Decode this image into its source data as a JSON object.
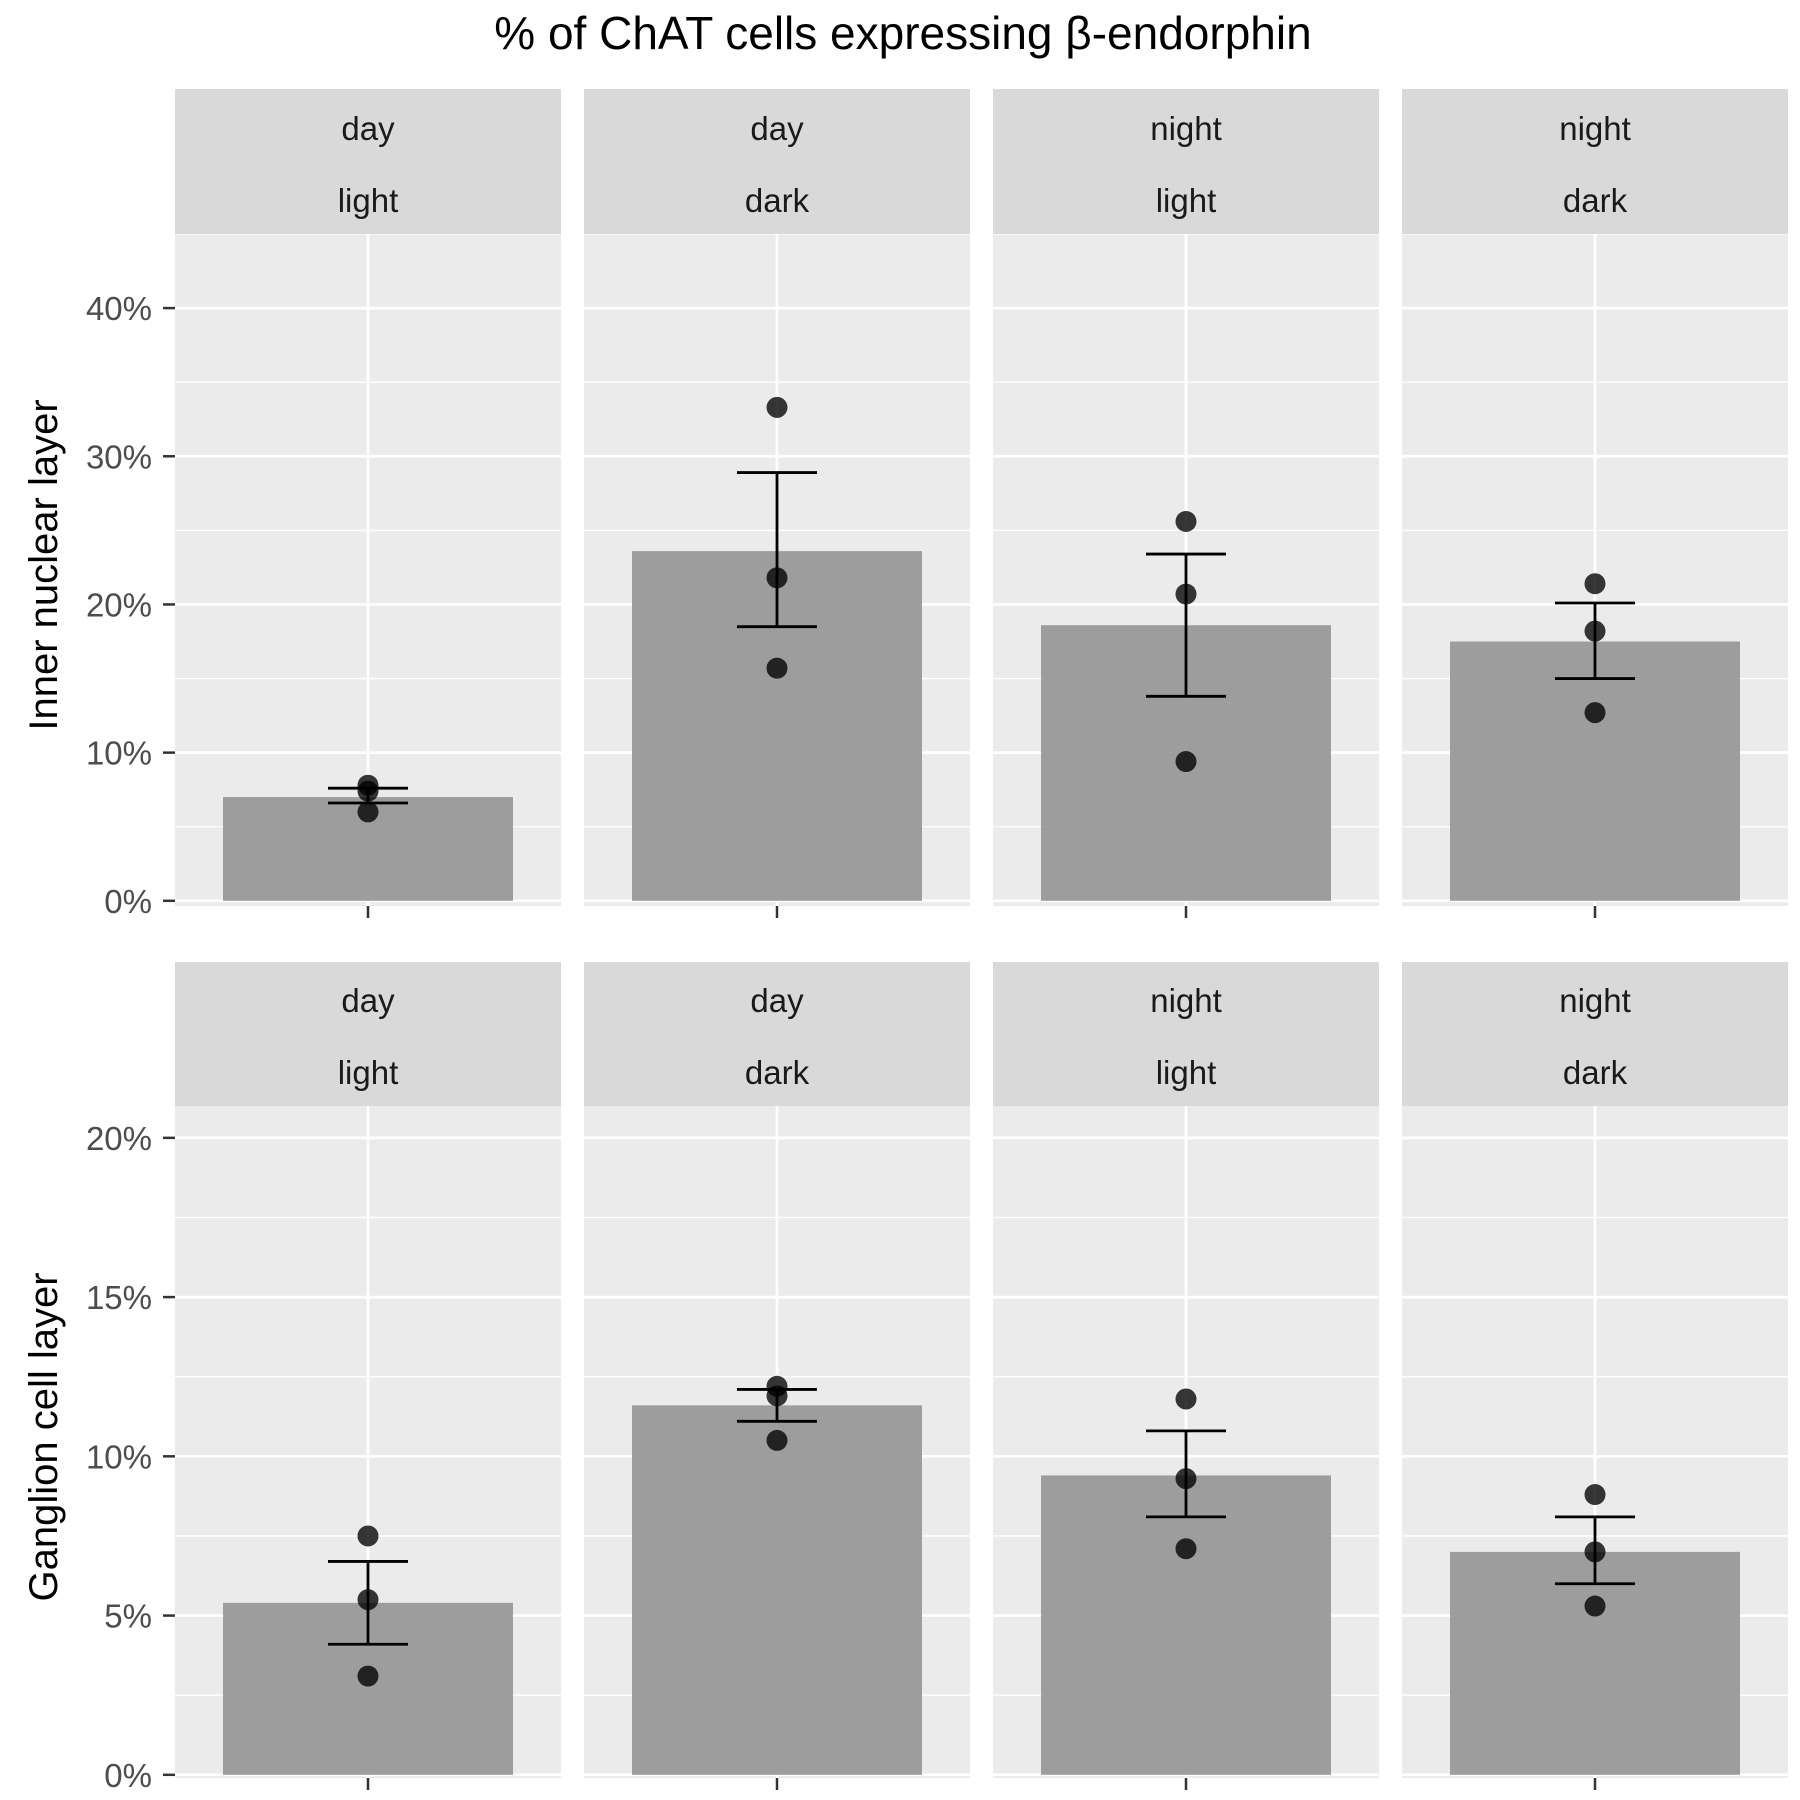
{
  "chart_data": {
    "type": "bar",
    "title": "% of ChAT cells expressing β-endorphin",
    "facets": [
      {
        "top": "day",
        "bottom": "light"
      },
      {
        "top": "day",
        "bottom": "dark"
      },
      {
        "top": "night",
        "bottom": "light"
      },
      {
        "top": "night",
        "bottom": "dark"
      }
    ],
    "colors": {
      "panel_bg": "#EBEBEB",
      "strip_bg": "#D9D9D9",
      "gridline": "#FFFFFF",
      "bar": "#999999",
      "point": "#000000",
      "errorbar": "#000000"
    },
    "rows": [
      {
        "ylabel": "Inner nuclear layer",
        "ylim": [
          -0.0035,
          0.45
        ],
        "yticks": [
          0,
          0.1,
          0.2,
          0.3,
          0.4
        ],
        "ytick_labels": [
          "0%",
          "10%",
          "20%",
          "30%",
          "40%"
        ],
        "means": [
          0.07,
          0.236,
          0.186,
          0.175
        ],
        "errors": [
          {
            "low": 0.066,
            "high": 0.076
          },
          {
            "low": 0.185,
            "high": 0.289
          },
          {
            "low": 0.138,
            "high": 0.234
          },
          {
            "low": 0.15,
            "high": 0.201
          }
        ],
        "points": [
          [
            0.06,
            0.074,
            0.078
          ],
          [
            0.157,
            0.218,
            0.333
          ],
          [
            0.094,
            0.207,
            0.256
          ],
          [
            0.127,
            0.182,
            0.214
          ]
        ]
      },
      {
        "ylabel": "Ganglion cell layer",
        "ylim": [
          -0.001,
          0.21
        ],
        "yticks": [
          0,
          0.05,
          0.1,
          0.15,
          0.2
        ],
        "ytick_labels": [
          "0%",
          "5%",
          "10%",
          "15%",
          "20%"
        ],
        "means": [
          0.054,
          0.116,
          0.094,
          0.07
        ],
        "errors": [
          {
            "low": 0.041,
            "high": 0.067
          },
          {
            "low": 0.111,
            "high": 0.121
          },
          {
            "low": 0.081,
            "high": 0.108
          },
          {
            "low": 0.06,
            "high": 0.081
          }
        ],
        "points": [
          [
            0.031,
            0.055,
            0.075
          ],
          [
            0.105,
            0.119,
            0.122
          ],
          [
            0.071,
            0.093,
            0.118
          ],
          [
            0.053,
            0.07,
            0.088
          ]
        ]
      }
    ]
  }
}
